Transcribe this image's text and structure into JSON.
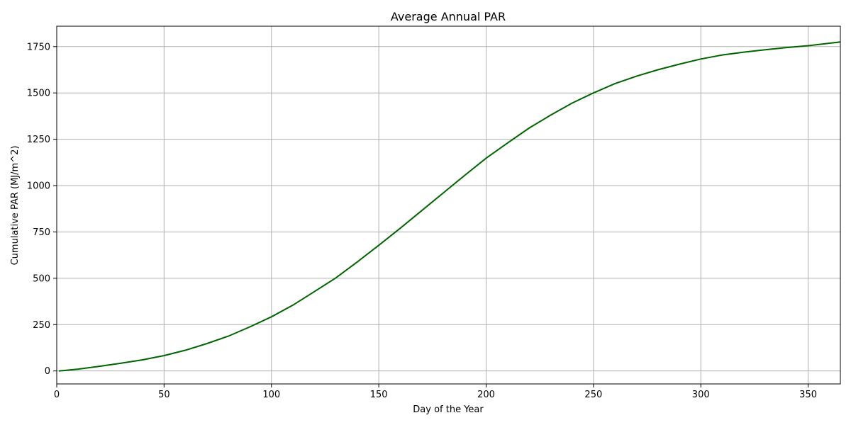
{
  "chart_data": {
    "type": "line",
    "title": "Average Annual PAR",
    "xlabel": "Day of the Year",
    "ylabel": "Cumulative PAR (MJ/m^2)",
    "xlim": [
      0,
      365
    ],
    "ylim": [
      -70,
      1860
    ],
    "xticks": [
      0,
      50,
      100,
      150,
      200,
      250,
      300,
      350
    ],
    "yticks": [
      0,
      250,
      500,
      750,
      1000,
      1250,
      1500,
      1750
    ],
    "grid": true,
    "line_color": "#006400",
    "series": [
      {
        "x": [
          1,
          10,
          20,
          30,
          40,
          50,
          60,
          70,
          80,
          90,
          100,
          110,
          120,
          130,
          140,
          150,
          160,
          170,
          180,
          190,
          200,
          210,
          220,
          230,
          240,
          250,
          260,
          270,
          280,
          290,
          300,
          310,
          320,
          330,
          340,
          350,
          365
        ],
        "values": [
          0,
          10,
          25,
          42,
          60,
          83,
          112,
          148,
          188,
          238,
          292,
          355,
          428,
          502,
          588,
          678,
          770,
          865,
          960,
          1055,
          1148,
          1230,
          1310,
          1380,
          1445,
          1500,
          1550,
          1590,
          1625,
          1655,
          1683,
          1705,
          1720,
          1733,
          1745,
          1755,
          1775
        ]
      }
    ]
  }
}
